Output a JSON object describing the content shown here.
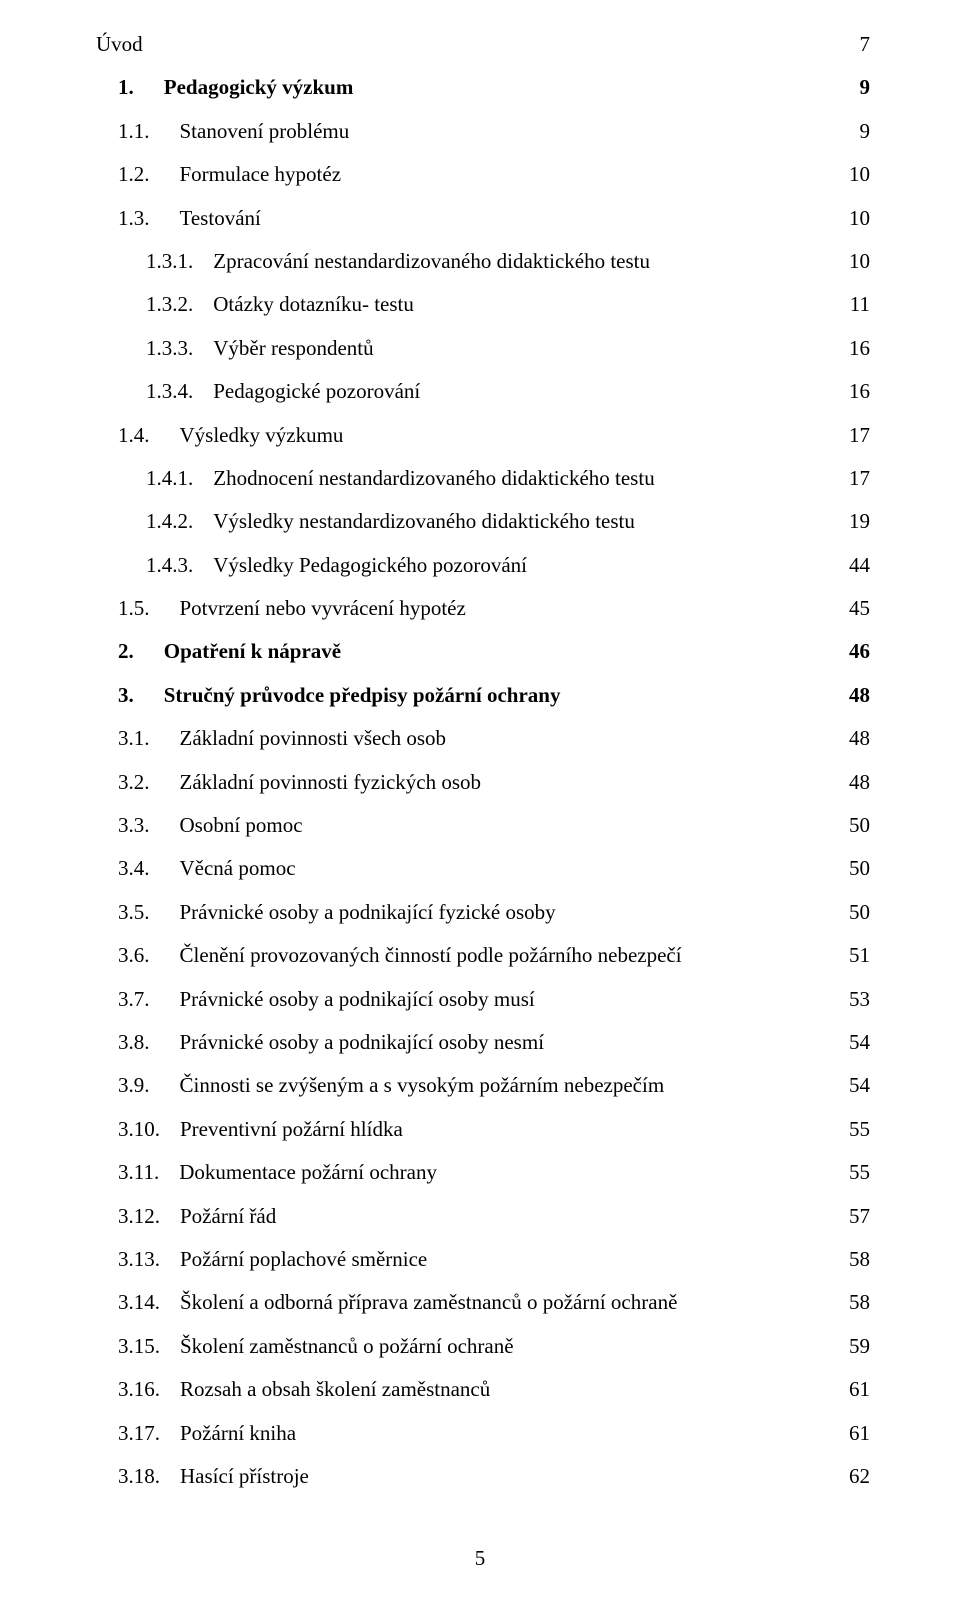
{
  "toc": {
    "entries": [
      {
        "number": "",
        "title": "Úvod",
        "page": "7",
        "indent": 0,
        "bold": false,
        "numpad": 0
      },
      {
        "number": "1.",
        "title": "Pedagogický výzkum",
        "page": "9",
        "indent": 1,
        "bold": true,
        "numpad": 24
      },
      {
        "number": "1.1.",
        "title": "Stanovení problému",
        "page": "9",
        "indent": 1,
        "bold": false,
        "numpad": 24
      },
      {
        "number": "1.2.",
        "title": "Formulace hypotéz",
        "page": "10",
        "indent": 1,
        "bold": false,
        "numpad": 24
      },
      {
        "number": "1.3.",
        "title": "Testování",
        "page": "10",
        "indent": 1,
        "bold": false,
        "numpad": 24
      },
      {
        "number": "1.3.1.",
        "title": "Zpracování nestandardizovaného didaktického testu",
        "page": "10",
        "indent": 2,
        "bold": false,
        "numpad": 14
      },
      {
        "number": "1.3.2.",
        "title": "Otázky dotazníku- testu",
        "page": "11",
        "indent": 2,
        "bold": false,
        "numpad": 14
      },
      {
        "number": "1.3.3.",
        "title": "Výběr respondentů",
        "page": "16",
        "indent": 2,
        "bold": false,
        "numpad": 14
      },
      {
        "number": "1.3.4.",
        "title": "Pedagogické pozorování",
        "page": "16",
        "indent": 2,
        "bold": false,
        "numpad": 14
      },
      {
        "number": "1.4.",
        "title": "Výsledky výzkumu",
        "page": "17",
        "indent": 1,
        "bold": false,
        "numpad": 24
      },
      {
        "number": "1.4.1.",
        "title": "Zhodnocení nestandardizovaného didaktického testu",
        "page": "17",
        "indent": 2,
        "bold": false,
        "numpad": 14
      },
      {
        "number": "1.4.2.",
        "title": "Výsledky nestandardizovaného didaktického testu",
        "page": "19",
        "indent": 2,
        "bold": false,
        "numpad": 14
      },
      {
        "number": "1.4.3.",
        "title": "Výsledky Pedagogického pozorování",
        "page": "44",
        "indent": 2,
        "bold": false,
        "numpad": 14
      },
      {
        "number": "1.5.",
        "title": "Potvrzení nebo vyvrácení hypotéz",
        "page": "45",
        "indent": 1,
        "bold": false,
        "numpad": 24
      },
      {
        "number": "2.",
        "title": "Opatření k nápravě",
        "page": "46",
        "indent": 1,
        "bold": true,
        "numpad": 24
      },
      {
        "number": "3.",
        "title": "Stručný průvodce předpisy požární ochrany",
        "page": "48",
        "indent": 1,
        "bold": true,
        "numpad": 24
      },
      {
        "number": "3.1.",
        "title": "Základní povinnosti všech osob",
        "page": "48",
        "indent": 1,
        "bold": false,
        "numpad": 24
      },
      {
        "number": "3.2.",
        "title": "Základní povinnosti fyzických osob",
        "page": "48",
        "indent": 1,
        "bold": false,
        "numpad": 24
      },
      {
        "number": "3.3.",
        "title": "Osobní pomoc",
        "page": "50",
        "indent": 1,
        "bold": false,
        "numpad": 24
      },
      {
        "number": "3.4.",
        "title": "Věcná pomoc",
        "page": "50",
        "indent": 1,
        "bold": false,
        "numpad": 24
      },
      {
        "number": "3.5.",
        "title": "Právnické osoby a podnikající fyzické osoby",
        "page": "50",
        "indent": 1,
        "bold": false,
        "numpad": 24
      },
      {
        "number": "3.6.",
        "title": "Členění provozovaných činností podle požárního nebezpečí",
        "page": "51",
        "indent": 1,
        "bold": false,
        "numpad": 24
      },
      {
        "number": "3.7.",
        "title": "Právnické osoby a podnikající osoby musí",
        "page": "53",
        "indent": 1,
        "bold": false,
        "numpad": 24
      },
      {
        "number": "3.8.",
        "title": "Právnické osoby a podnikající osoby nesmí",
        "page": "54",
        "indent": 1,
        "bold": false,
        "numpad": 24
      },
      {
        "number": "3.9.",
        "title": "Činnosti se zvýšeným a s vysokým požárním nebezpečím",
        "page": "54",
        "indent": 1,
        "bold": false,
        "numpad": 24
      },
      {
        "number": "3.10.",
        "title": "Preventivní požární hlídka",
        "page": "55",
        "indent": 1,
        "bold": false,
        "numpad": 14
      },
      {
        "number": "3.11.",
        "title": "Dokumentace požární ochrany",
        "page": "55",
        "indent": 1,
        "bold": false,
        "numpad": 14
      },
      {
        "number": "3.12.",
        "title": "Požární řád",
        "page": "57",
        "indent": 1,
        "bold": false,
        "numpad": 14
      },
      {
        "number": "3.13.",
        "title": "Požární poplachové směrnice",
        "page": "58",
        "indent": 1,
        "bold": false,
        "numpad": 14
      },
      {
        "number": "3.14.",
        "title": "Školení a odborná příprava zaměstnanců o požární ochraně",
        "page": "58",
        "indent": 1,
        "bold": false,
        "numpad": 14
      },
      {
        "number": "3.15.",
        "title": "Školení zaměstnanců o požární ochraně",
        "page": "59",
        "indent": 1,
        "bold": false,
        "numpad": 14
      },
      {
        "number": "3.16.",
        "title": "Rozsah a obsah školení zaměstnanců",
        "page": "61",
        "indent": 1,
        "bold": false,
        "numpad": 14
      },
      {
        "number": "3.17.",
        "title": "Požární kniha",
        "page": "61",
        "indent": 1,
        "bold": false,
        "numpad": 14
      },
      {
        "number": "3.18.",
        "title": "Hasící přístroje",
        "page": "62",
        "indent": 1,
        "bold": false,
        "numpad": 14
      }
    ]
  },
  "footer": {
    "page_number": "5"
  }
}
